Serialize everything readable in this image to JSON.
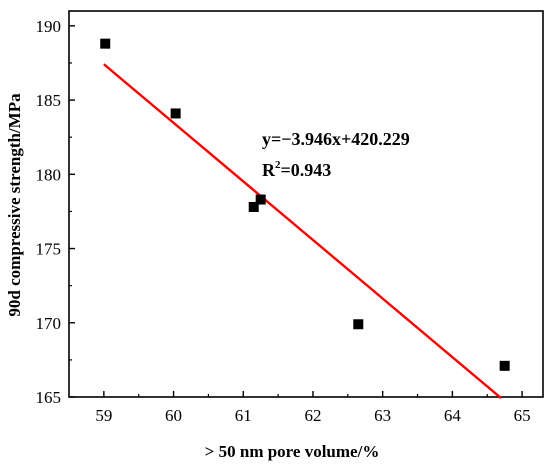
{
  "chart_data": {
    "type": "scatter",
    "title": "",
    "xlabel": "> 50 nm pore volume/%",
    "ylabel": "90d compressive strength/MPa",
    "xlim": [
      58.5,
      65.3
    ],
    "ylim": [
      165,
      191
    ],
    "xticks": [
      59,
      60,
      61,
      62,
      63,
      64,
      65
    ],
    "yticks": [
      165,
      170,
      175,
      180,
      185,
      190
    ],
    "grid": false,
    "legend": "none",
    "series": [
      {
        "marker": "square",
        "color": "#000000",
        "points": [
          {
            "x": 59.02,
            "y": 188.8
          },
          {
            "x": 60.03,
            "y": 184.1
          },
          {
            "x": 61.15,
            "y": 177.8
          },
          {
            "x": 61.25,
            "y": 178.3
          },
          {
            "x": 62.65,
            "y": 169.9
          },
          {
            "x": 64.75,
            "y": 167.1
          }
        ]
      }
    ],
    "fit_line": {
      "color": "#ff0000",
      "slope": -3.946,
      "intercept": 420.229,
      "x_range": [
        59.0,
        64.7
      ]
    },
    "annotations": {
      "equation": "y=−3.946x+420.229",
      "r2_prefix": "R",
      "r2_sup": "2",
      "r2_value": "=0.943"
    }
  }
}
